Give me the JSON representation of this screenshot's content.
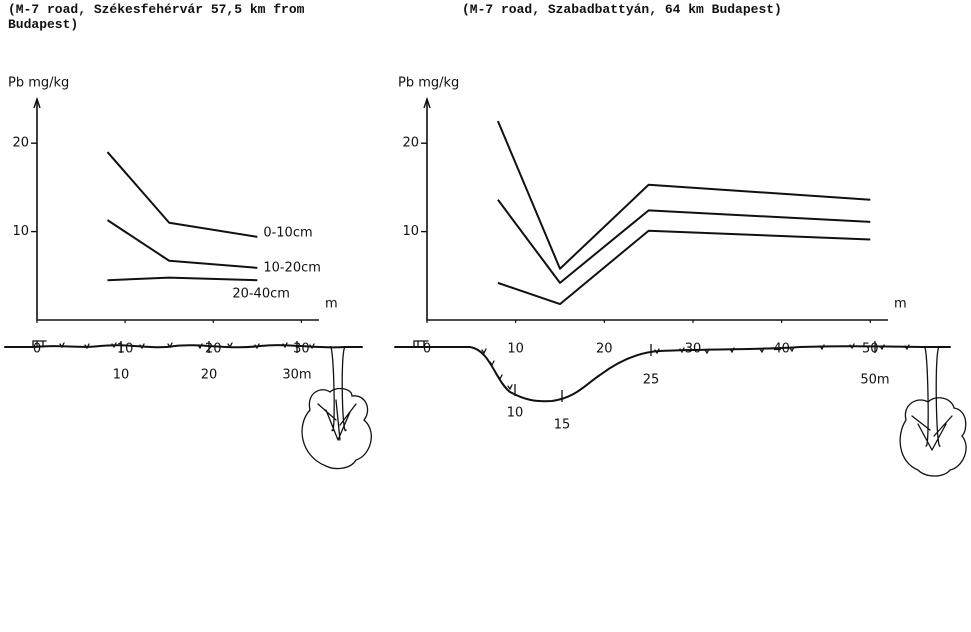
{
  "chart_data": [
    {
      "type": "line",
      "title": "(M-7 road, Székesfehérvár 57,5 km from Budapest)",
      "y_label": "Pb mg/kg",
      "x_label": "m",
      "x": [
        8,
        15,
        25
      ],
      "series": [
        {
          "name": "0-10cm",
          "color": "#111111",
          "values": [
            19,
            11,
            9.4
          ]
        },
        {
          "name": "10-20cm",
          "color": "#111111",
          "values": [
            11.3,
            6.7,
            5.9
          ]
        },
        {
          "name": "20-40cm",
          "color": "#111111",
          "values": [
            4.5,
            4.8,
            4.5
          ]
        }
      ],
      "xlim": [
        0,
        32
      ],
      "ylim": [
        0,
        25
      ],
      "xticks": [
        0,
        10,
        20,
        30
      ],
      "yticks": [
        10,
        20
      ],
      "grid": false
    },
    {
      "type": "line",
      "title": "(M-7 road, Szabadbattyán, 64 km Budapest)",
      "y_label": "Pb mg/kg",
      "x_label": "m",
      "x": [
        8,
        15,
        25,
        50
      ],
      "series": [
        {
          "color": "#111111",
          "values": [
            22.5,
            5.8,
            15.3,
            13.6
          ]
        },
        {
          "color": "#111111",
          "values": [
            13.6,
            4.2,
            12.4,
            11.1
          ]
        },
        {
          "color": "#111111",
          "values": [
            4.2,
            1.8,
            10.1,
            9.1
          ]
        }
      ],
      "xlim": [
        0,
        52
      ],
      "ylim": [
        0,
        25
      ],
      "xticks": [
        0,
        10,
        20,
        30,
        40,
        50
      ],
      "yticks": [
        10,
        20
      ],
      "grid": false
    }
  ],
  "profiles": [
    {
      "labels": [
        "10",
        "20",
        "30m"
      ]
    },
    {
      "labels": [
        "10",
        "15",
        "25",
        "50m"
      ]
    }
  ]
}
